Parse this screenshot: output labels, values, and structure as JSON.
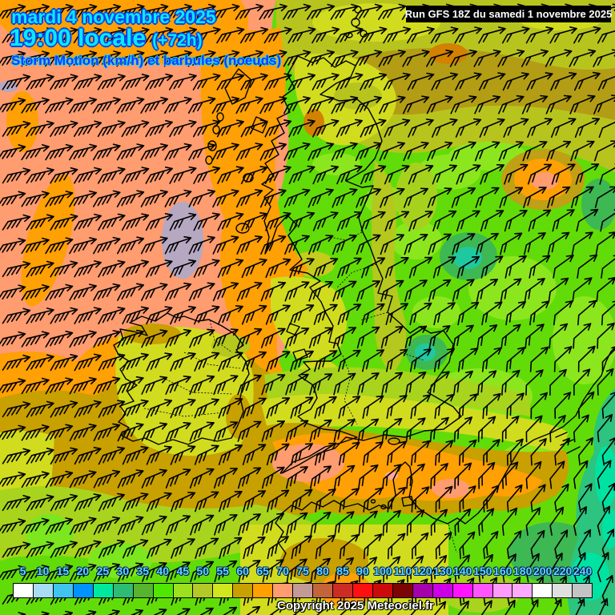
{
  "header": {
    "date": "mardi 4 novembre 2025",
    "time": "19:00 locale",
    "forecast_offset": "(+72h)",
    "subtitle": "Storm Motion (km/h) et barbules (noeuds)",
    "run_label": "Run GFS 18Z du samedi 1 novembre 2025"
  },
  "legend": {
    "values": [
      "5",
      "10",
      "15",
      "20",
      "25",
      "30",
      "35",
      "40",
      "45",
      "50",
      "55",
      "60",
      "65",
      "70",
      "75",
      "80",
      "85",
      "90",
      "100",
      "110",
      "120",
      "130",
      "140",
      "150",
      "160",
      "180",
      "200",
      "220",
      "240"
    ],
    "colors": [
      "#ffffff",
      "#a8dcf2",
      "#3fc4f0",
      "#0092ff",
      "#00e89e",
      "#2ebc74",
      "#56b42e",
      "#4fe600",
      "#9ce01e",
      "#b4c828",
      "#d2e61e",
      "#c8a000",
      "#ffa000",
      "#ff9c70",
      "#c49a96",
      "#c4643c",
      "#cc2c24",
      "#ff1010",
      "#cc0a0a",
      "#7c0404",
      "#a400ac",
      "#cc00e6",
      "#ff14ff",
      "#ff55ff",
      "#ff9aff",
      "#ffaaff",
      "#ffffff",
      "#e0e0e0",
      "#c4c4c4"
    ],
    "copyright": "Copyright 2025 Meteociel.fr"
  },
  "colors": {
    "title_fill": "#0ce8ff",
    "title_outline": "#0046f0",
    "subtitle_fill": "#2233ff",
    "run_bg": "#000000",
    "run_text": "#ffffff",
    "legend_label": "#5cd6ff",
    "field_salmon": "#ff9c70",
    "field_orange": "#ffa004",
    "field_mustard": "#c8a000",
    "field_yellow": "#d2dc1e",
    "field_green": "#62dc08",
    "field_teal": "#1fc9a0"
  },
  "map": {
    "symbol": "wind-barb-arrow",
    "barb_grid": {
      "cols": 27,
      "rows": 27
    }
  }
}
